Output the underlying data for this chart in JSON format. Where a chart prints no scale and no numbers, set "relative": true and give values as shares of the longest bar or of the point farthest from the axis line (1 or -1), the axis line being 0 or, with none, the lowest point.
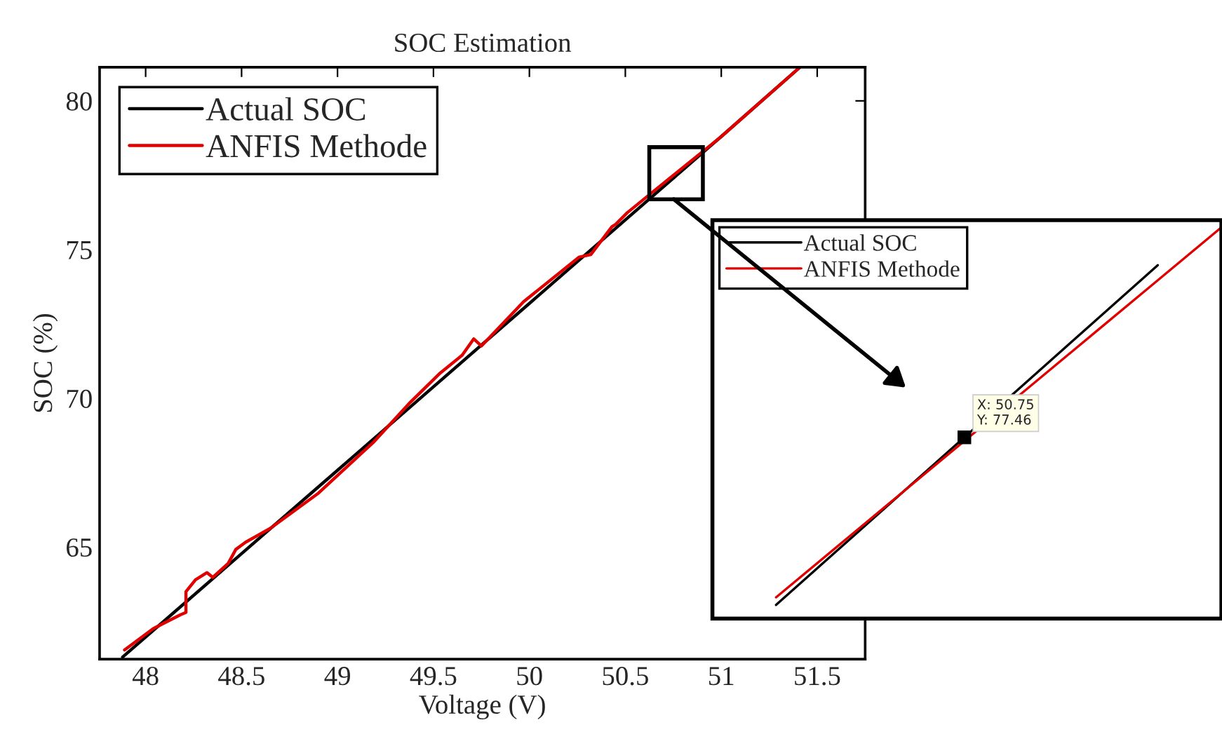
{
  "chart_data": [
    {
      "type": "line",
      "title": "SOC Estimation",
      "xlabel": "Voltage (V)",
      "ylabel": "SOC (%)",
      "xlim": [
        47.76,
        51.75
      ],
      "ylim": [
        61.23,
        81.13
      ],
      "xticks": [
        48,
        48.5,
        49,
        49.5,
        50,
        50.5,
        51,
        51.5
      ],
      "yticks": [
        65,
        70,
        75,
        80
      ],
      "grid": false,
      "legend": "top left",
      "line_style": "solid",
      "marker": "none",
      "series": [
        {
          "name": "Actual SOC",
          "color": "#000000",
          "x": [
            47.88,
            48.5,
            49,
            49.5,
            50,
            50.5,
            51,
            51.41
          ],
          "values": [
            61.3,
            64.78,
            67.58,
            70.39,
            73.19,
            76.0,
            78.8,
            81.13
          ]
        },
        {
          "name": "ANFIS Methode",
          "color": "#e00000",
          "x": [
            47.89,
            48.04,
            48.18,
            48.21,
            48.21,
            48.26,
            48.32,
            48.35,
            48.43,
            48.47,
            48.52,
            48.65,
            48.9,
            49.19,
            49.38,
            49.53,
            49.65,
            49.71,
            49.75,
            49.97,
            50.26,
            50.32,
            50.43,
            50.45,
            50.51,
            50.63,
            51.0,
            51.41
          ],
          "values": [
            61.54,
            62.26,
            62.72,
            62.8,
            63.5,
            63.9,
            64.14,
            63.98,
            64.45,
            64.92,
            65.16,
            65.63,
            66.81,
            68.54,
            69.87,
            70.82,
            71.45,
            72.0,
            71.76,
            73.25,
            74.75,
            74.83,
            75.77,
            75.85,
            76.24,
            76.87,
            78.8,
            81.13
          ]
        }
      ]
    },
    {
      "type": "line",
      "relative": true,
      "grid": false,
      "legend": "top left",
      "line_style": "solid",
      "marker": "none",
      "categories": [
        null,
        null,
        null,
        null,
        null,
        null,
        null,
        null,
        null
      ],
      "annotations": [
        "X: 50.75\nY: 77.46"
      ],
      "series": [
        {
          "name": "Actual SOC",
          "color": "#000000",
          "values": [
            null,
            0,
            0.15,
            0.3,
            0.45,
            0.6,
            0.75,
            0.9,
            null
          ]
        },
        {
          "name": "ANFIS Methode",
          "color": "#e00000",
          "values": [
            null,
            0.02,
            0.16,
            0.3,
            0.44,
            0.58,
            0.72,
            0.86,
            1.0
          ]
        }
      ]
    }
  ]
}
